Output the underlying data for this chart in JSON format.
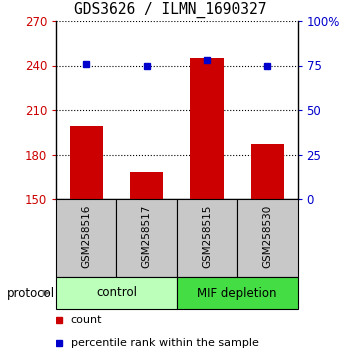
{
  "title": "GDS3626 / ILMN_1690327",
  "samples": [
    "GSM258516",
    "GSM258517",
    "GSM258515",
    "GSM258530"
  ],
  "bar_values": [
    199,
    168,
    245,
    187
  ],
  "percentile_values": [
    76,
    75,
    78,
    75
  ],
  "ylim_left": [
    150,
    270
  ],
  "ylim_right": [
    0,
    100
  ],
  "yticks_left": [
    150,
    180,
    210,
    240,
    270
  ],
  "yticks_right": [
    0,
    25,
    50,
    75,
    100
  ],
  "ytick_labels_right": [
    "0",
    "25",
    "50",
    "75",
    "100%"
  ],
  "bar_color": "#cc0000",
  "dot_color": "#0000cc",
  "bar_width": 0.55,
  "control_color": "#bbffbb",
  "mif_color": "#44dd44",
  "protocol_label": "protocol",
  "legend_count_label": "count",
  "legend_percentile_label": "percentile rank within the sample",
  "background_color": "#ffffff",
  "sample_box_color": "#c8c8c8",
  "left_tick_color": "#cc0000",
  "right_tick_color": "#0000cc"
}
